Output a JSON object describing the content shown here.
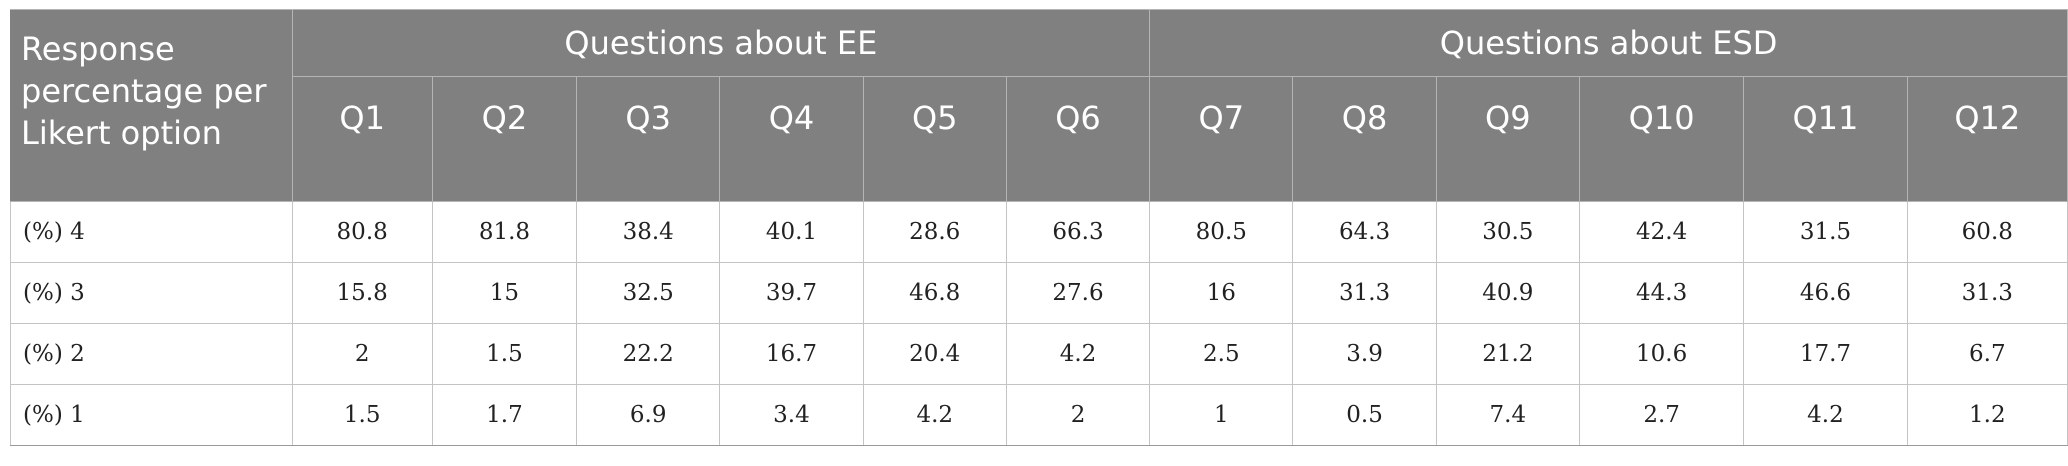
{
  "table": {
    "corner_label": "Response percentage per Likert option",
    "groups": [
      {
        "label": "Questions about EE"
      },
      {
        "label": "Questions about ESD"
      }
    ],
    "questions": [
      "Q1",
      "Q2",
      "Q3",
      "Q4",
      "Q5",
      "Q6",
      "Q7",
      "Q8",
      "Q9",
      "Q10",
      "Q11",
      "Q12"
    ],
    "rows": [
      {
        "label": "(%) 4",
        "values": [
          "80.8",
          "81.8",
          "38.4",
          "40.1",
          "28.6",
          "66.3",
          "80.5",
          "64.3",
          "30.5",
          "42.4",
          "31.5",
          "60.8"
        ]
      },
      {
        "label": "(%) 3",
        "values": [
          "15.8",
          "15",
          "32.5",
          "39.7",
          "46.8",
          "27.6",
          "16",
          "31.3",
          "40.9",
          "44.3",
          "46.6",
          "31.3"
        ]
      },
      {
        "label": "(%) 2",
        "values": [
          "2",
          "1.5",
          "22.2",
          "16.7",
          "20.4",
          "4.2",
          "2.5",
          "3.9",
          "21.2",
          "10.6",
          "17.7",
          "6.7"
        ]
      },
      {
        "label": "(%) 1",
        "values": [
          "1.5",
          "1.7",
          "6.9",
          "3.4",
          "4.2",
          "2",
          "1",
          "0.5",
          "7.4",
          "2.7",
          "4.2",
          "1.2"
        ]
      }
    ]
  }
}
